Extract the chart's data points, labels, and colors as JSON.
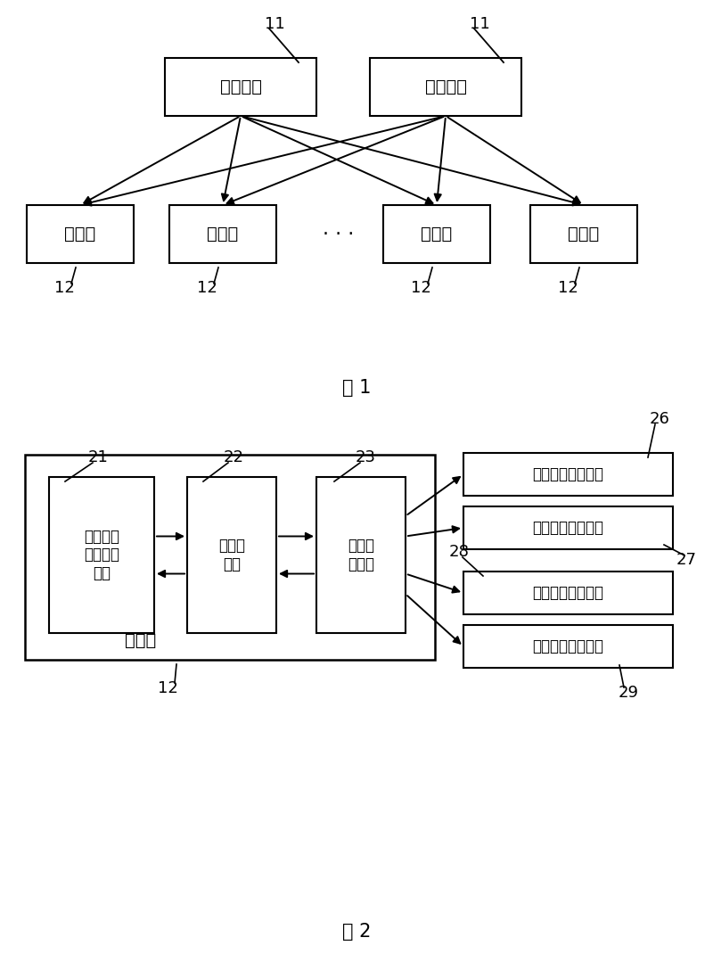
{
  "bg_color": "#ffffff",
  "fig1_title": "图 1",
  "fig2_title": "图 2",
  "switch_label": "交换网板",
  "service_label": "业务板",
  "label_11": "11",
  "label_12": "12",
  "label_21": "21",
  "label_22": "22",
  "label_23": "23",
  "label_26": "26",
  "label_27": "27",
  "label_28": "28",
  "label_29": "29",
  "box21_label": "业务板内\n其他电路\n模块",
  "box22_label": "物理层\n电路",
  "box23_label": "链路复\n制器件",
  "box_outer_label": "业务板",
  "iface26_label": "主用通道接收接口",
  "iface27_label": "备用通道发送接口",
  "iface28_label": "主用通道接收接口",
  "iface29_label": "备用通道接收接口",
  "dots": "· · ·"
}
